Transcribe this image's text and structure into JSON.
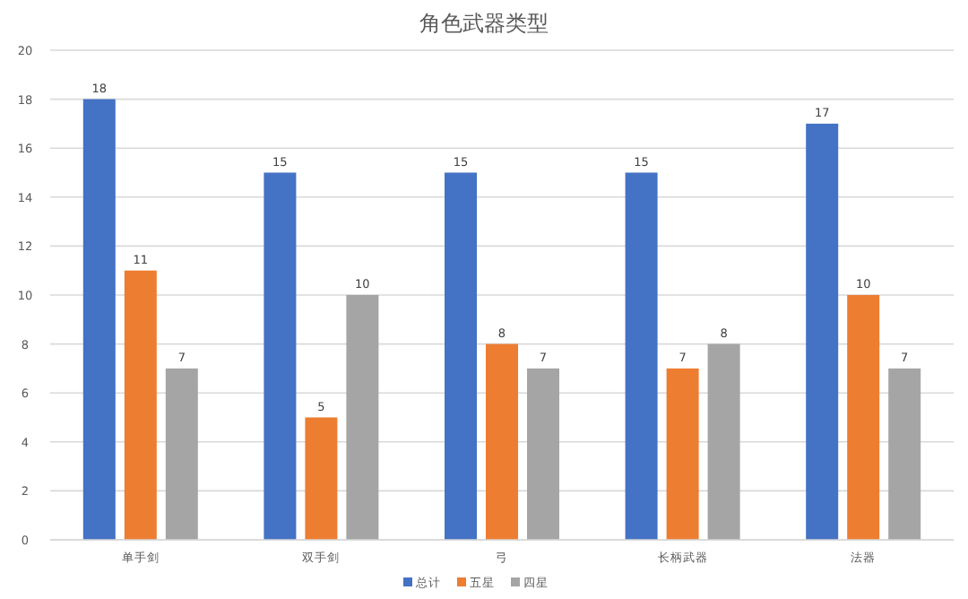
{
  "chart_data": {
    "type": "bar",
    "title": "角色武器类型",
    "categories": [
      "单手剑",
      "双手剑",
      "弓",
      "长柄武器",
      "法器"
    ],
    "series": [
      {
        "name": "总计",
        "color": "#4472c4",
        "values": [
          18,
          15,
          15,
          15,
          17
        ]
      },
      {
        "name": "五星",
        "color": "#ed7d31",
        "values": [
          11,
          5,
          8,
          7,
          10
        ]
      },
      {
        "name": "四星",
        "color": "#a5a5a5",
        "values": [
          7,
          10,
          7,
          8,
          7
        ]
      }
    ],
    "ylim": [
      0,
      20
    ],
    "yticks": [
      0,
      2,
      4,
      6,
      8,
      10,
      12,
      14,
      16,
      18,
      20
    ],
    "grid": "y",
    "legend": "bottom",
    "data_labels": true
  }
}
